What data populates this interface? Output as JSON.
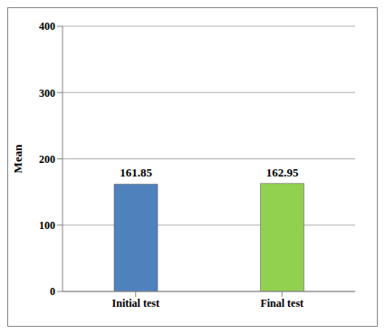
{
  "chart_data": {
    "type": "bar",
    "y_label": "Mean",
    "categories": [
      "Initial test",
      "Final test"
    ],
    "values": [
      161.85,
      162.95
    ],
    "colors": [
      "#4f81bd",
      "#92d050"
    ],
    "ylim": [
      0,
      400
    ],
    "yticks": [
      0,
      100,
      200,
      300,
      400
    ],
    "grid": true,
    "data_labels": true
  }
}
